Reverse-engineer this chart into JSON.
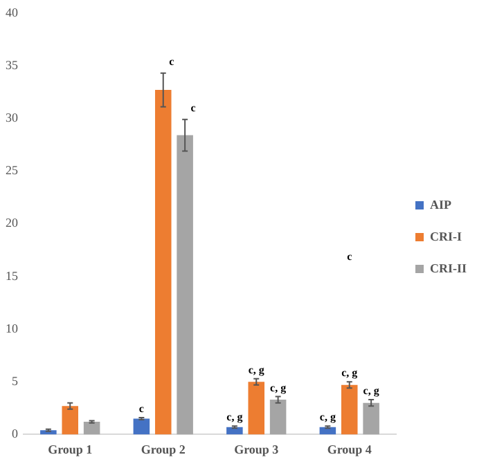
{
  "chart_data": {
    "type": "bar",
    "categories": [
      "Group 1",
      "Group 2",
      "Group 3",
      "Group 4"
    ],
    "series": [
      {
        "name": "AIP",
        "color": "#4472c4",
        "values": [
          0.4,
          1.5,
          0.7,
          0.7
        ],
        "errors": [
          0.1,
          0.1,
          0.1,
          0.1
        ],
        "value_labels": [
          null,
          "c",
          "c, g",
          "c, g"
        ]
      },
      {
        "name": "CRI-I",
        "color": "#ed7d31",
        "values": [
          2.7,
          32.7,
          5.0,
          4.7
        ],
        "errors": [
          0.3,
          1.6,
          0.3,
          0.3
        ],
        "value_labels": [
          null,
          "c",
          "c, g",
          "c, g"
        ]
      },
      {
        "name": "CRI-II",
        "color": "#a5a5a5",
        "values": [
          1.2,
          28.4,
          3.3,
          3.0
        ],
        "errors": [
          0.1,
          1.5,
          0.3,
          0.3
        ],
        "value_labels": [
          null,
          "c",
          "c, g",
          "c, g"
        ]
      }
    ],
    "ylim": [
      0,
      40
    ],
    "yticks": [
      0,
      5,
      10,
      15,
      20,
      25,
      30,
      35,
      40
    ],
    "grid": false,
    "legend": "right",
    "annotations": [
      "c"
    ]
  }
}
